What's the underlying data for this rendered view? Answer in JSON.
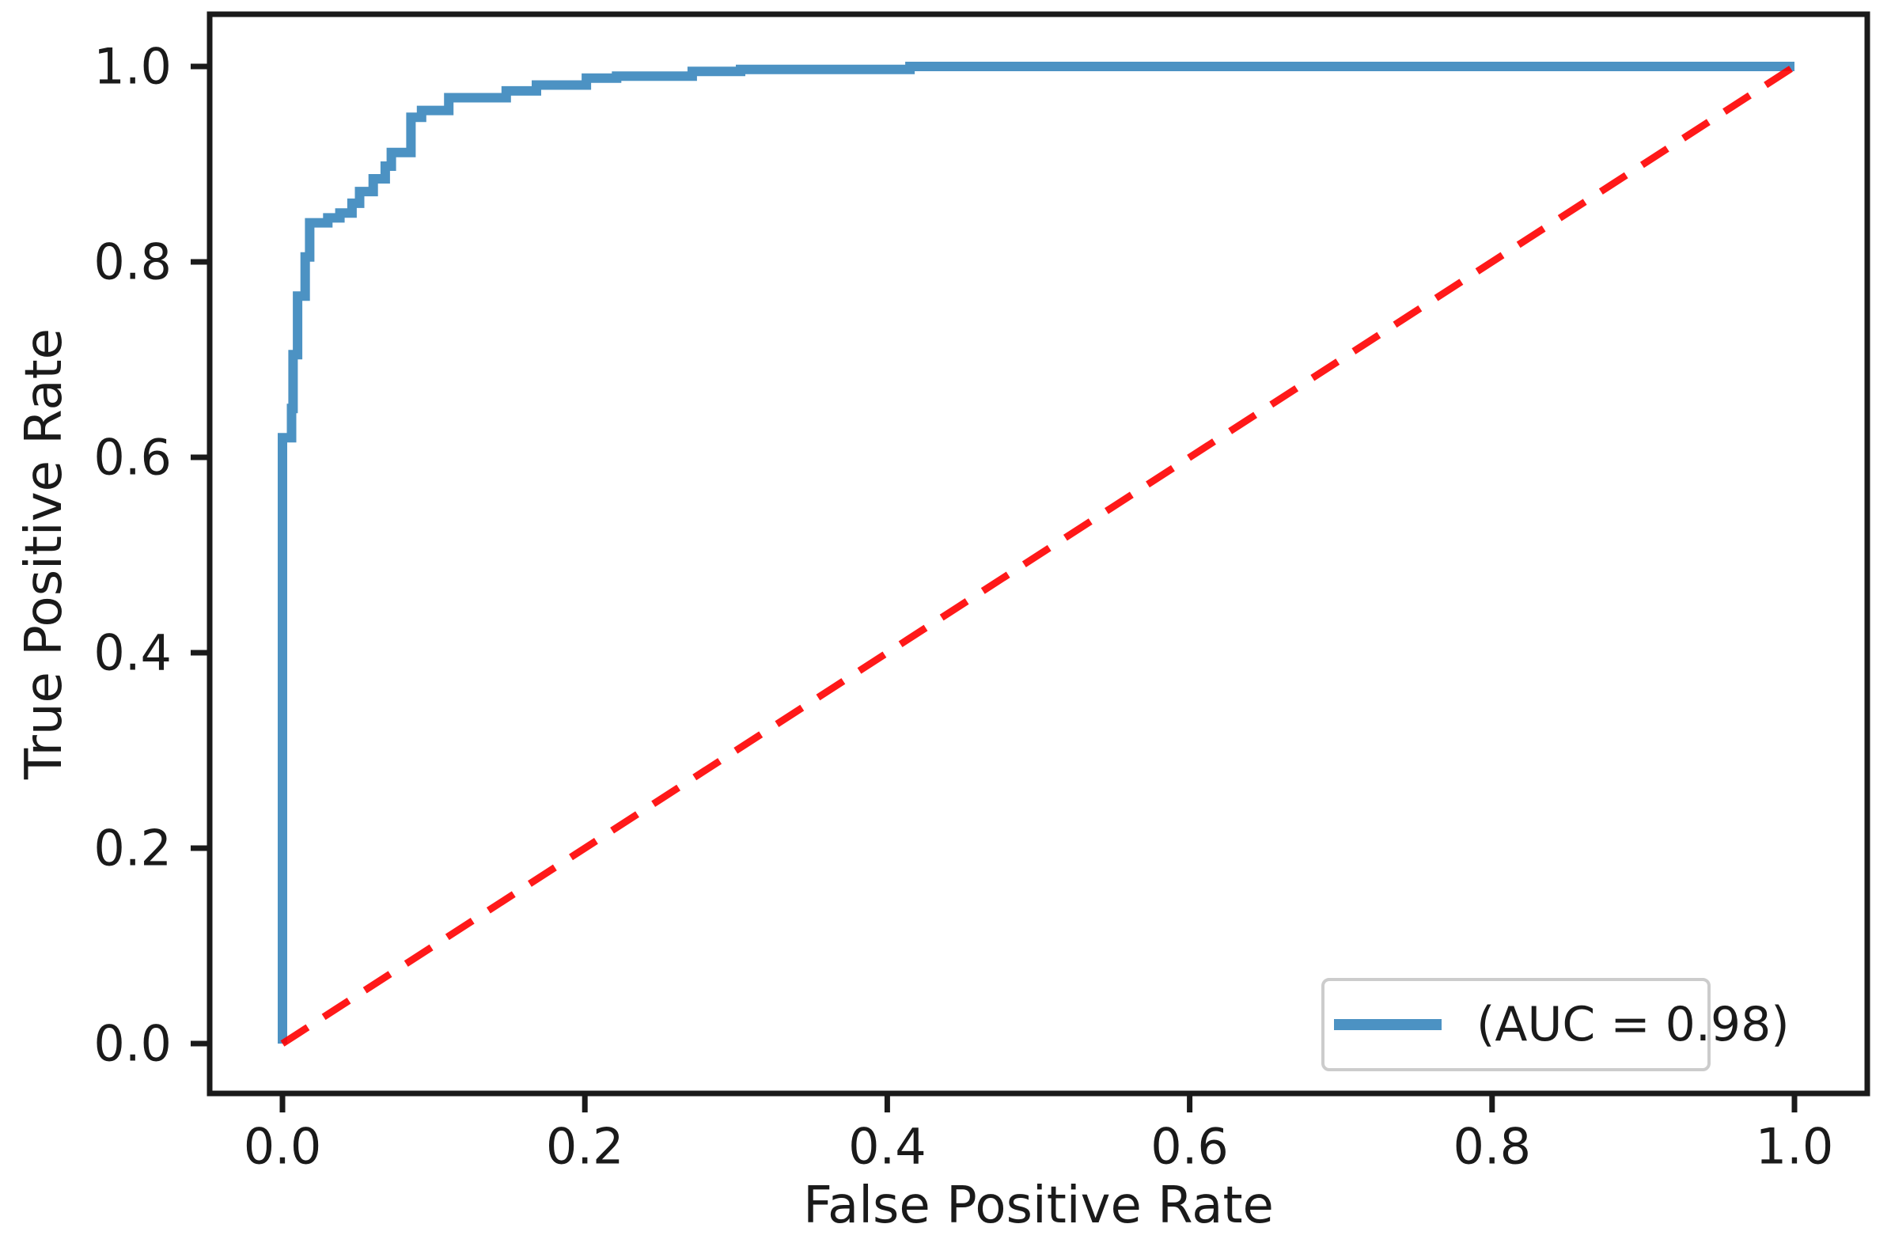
{
  "chart_data": {
    "type": "line",
    "subtype": "roc-curve",
    "title": "",
    "xlabel": "False Positive Rate",
    "ylabel": "True Positive Rate",
    "xlim": [
      -0.05,
      1.05
    ],
    "ylim": [
      -0.05,
      1.05
    ],
    "grid": false,
    "x_ticks": {
      "values": [
        0.0,
        0.2,
        0.4,
        0.6,
        0.8,
        1.0
      ],
      "labels": [
        "0.0",
        "0.2",
        "0.4",
        "0.6",
        "0.8",
        "1.0"
      ]
    },
    "y_ticks": {
      "values": [
        0.0,
        0.2,
        0.4,
        0.6,
        0.8,
        1.0
      ],
      "labels": [
        "0.0",
        "0.2",
        "0.4",
        "0.6",
        "0.8",
        "1.0"
      ]
    },
    "auc": 0.98,
    "legend": {
      "position": "lower right",
      "entries": [
        {
          "label": "(AUC = 0.98)",
          "color": "#1f77b4"
        }
      ]
    },
    "series": [
      {
        "name": "roc-curve",
        "style": "solid",
        "color": "#1f77b4",
        "opacity": 0.8,
        "points": [
          [
            0.0,
            0.0
          ],
          [
            0.0,
            0.62
          ],
          [
            0.006,
            0.62
          ],
          [
            0.006,
            0.65
          ],
          [
            0.007,
            0.65
          ],
          [
            0.007,
            0.705
          ],
          [
            0.01,
            0.705
          ],
          [
            0.01,
            0.765
          ],
          [
            0.015,
            0.765
          ],
          [
            0.015,
            0.805
          ],
          [
            0.018,
            0.805
          ],
          [
            0.018,
            0.84
          ],
          [
            0.03,
            0.84
          ],
          [
            0.03,
            0.845
          ],
          [
            0.038,
            0.845
          ],
          [
            0.038,
            0.85
          ],
          [
            0.046,
            0.85
          ],
          [
            0.046,
            0.86
          ],
          [
            0.051,
            0.86
          ],
          [
            0.051,
            0.872
          ],
          [
            0.06,
            0.872
          ],
          [
            0.06,
            0.885
          ],
          [
            0.068,
            0.885
          ],
          [
            0.068,
            0.898
          ],
          [
            0.072,
            0.898
          ],
          [
            0.072,
            0.912
          ],
          [
            0.085,
            0.912
          ],
          [
            0.085,
            0.948
          ],
          [
            0.092,
            0.948
          ],
          [
            0.092,
            0.955
          ],
          [
            0.11,
            0.955
          ],
          [
            0.11,
            0.968
          ],
          [
            0.148,
            0.968
          ],
          [
            0.148,
            0.975
          ],
          [
            0.168,
            0.975
          ],
          [
            0.168,
            0.981
          ],
          [
            0.201,
            0.981
          ],
          [
            0.201,
            0.988
          ],
          [
            0.221,
            0.988
          ],
          [
            0.221,
            0.99
          ],
          [
            0.271,
            0.99
          ],
          [
            0.271,
            0.995
          ],
          [
            0.303,
            0.995
          ],
          [
            0.303,
            0.997
          ],
          [
            0.415,
            0.997
          ],
          [
            0.415,
            1.0
          ],
          [
            1.0,
            1.0
          ]
        ]
      },
      {
        "name": "chance-diagonal",
        "style": "dashed",
        "color": "#ff0000",
        "opacity": 0.9,
        "points": [
          [
            0.0,
            0.0
          ],
          [
            1.0,
            1.0
          ]
        ]
      }
    ]
  }
}
